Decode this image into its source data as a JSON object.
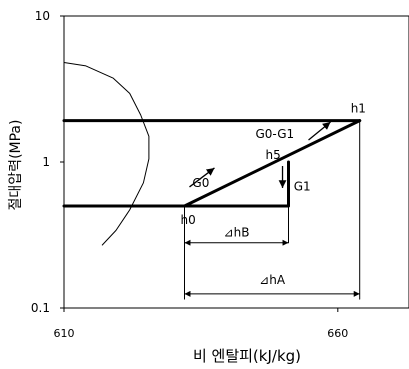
{
  "chart_data": {
    "type": "line",
    "title": "",
    "xlabel": "비 엔탈피(kJ/kg)",
    "ylabel": "절대압력(MPa)",
    "xlim": [
      610,
      673
    ],
    "ylim": [
      0.1,
      10
    ],
    "y_scale": "log",
    "x_ticks": [
      {
        "value": 610,
        "label": "610"
      },
      {
        "value": 660,
        "label": "660"
      }
    ],
    "y_ticks": [
      {
        "value": 10,
        "label": "10"
      },
      {
        "value": 1,
        "label": "1"
      },
      {
        "value": 0.1,
        "label": "0.1"
      }
    ],
    "grid": false,
    "series": [
      {
        "name": "",
        "style": "thin",
        "x": [
          610,
          614,
          619,
          622,
          624,
          625.5,
          625.5,
          624.5,
          622,
          619.5,
          617
        ],
        "y": [
          4.8,
          4.55,
          3.75,
          2.95,
          2.1,
          1.5,
          1.05,
          0.72,
          0.47,
          0.34,
          0.27
        ]
      },
      {
        "name": "",
        "style": "thick",
        "x": [
          610,
          664
        ],
        "y": [
          1.92,
          1.92
        ]
      },
      {
        "name": "",
        "style": "thick",
        "x": [
          610,
          632,
          651,
          651
        ],
        "y": [
          0.5,
          0.5,
          0.5,
          1.0
        ]
      },
      {
        "name": "",
        "style": "thick",
        "x": [
          632,
          664
        ],
        "y": [
          0.5,
          1.92
        ]
      },
      {
        "name": "",
        "style": "thin",
        "x": [
          632,
          632
        ],
        "y": [
          0.5,
          0.115
        ]
      },
      {
        "name": "",
        "style": "thin",
        "x": [
          651,
          651
        ],
        "y": [
          0.5,
          0.28
        ]
      },
      {
        "name": "",
        "style": "thin",
        "x": [
          664,
          664
        ],
        "y": [
          1.92,
          0.115
        ]
      }
    ],
    "points": [
      {
        "label": "h1",
        "x": 664,
        "y": 1.92
      },
      {
        "label": "h5",
        "x": 651,
        "y": 1.0
      },
      {
        "label": "h0",
        "x": 632,
        "y": 0.5
      }
    ],
    "annotations": [
      {
        "text": "G0-G1",
        "x": 648.5,
        "y": 1.55
      },
      {
        "text": "G0",
        "x": 635,
        "y": 0.72
      },
      {
        "text": "G1",
        "x": 653.5,
        "y": 0.68
      },
      {
        "text": "⊿hB",
        "x": 641.5,
        "y": 0.33
      },
      {
        "text": "⊿hA",
        "x": 648,
        "y": 0.155
      }
    ],
    "dimensions": [
      {
        "label": "⊿hB",
        "x1": 632,
        "x2": 651,
        "y": 0.28
      },
      {
        "label": "⊿hA",
        "x1": 632,
        "x2": 664,
        "y": 0.125
      }
    ]
  }
}
